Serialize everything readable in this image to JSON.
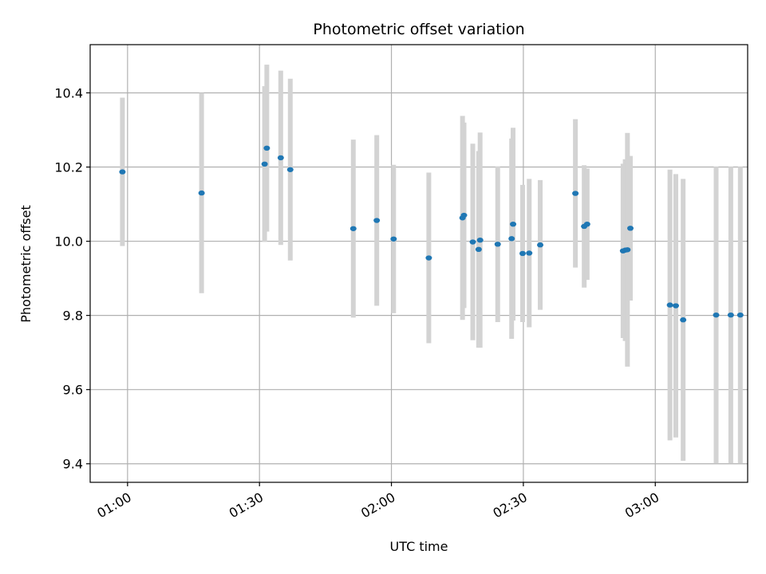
{
  "chart_data": {
    "type": "scatter",
    "title": "Photometric offset variation",
    "xlabel": "UTC time",
    "ylabel": "Photometric offset",
    "x_axis": "time",
    "xlim": [
      "00:51:30",
      "03:21:00"
    ],
    "ylim": [
      9.35,
      10.53
    ],
    "x_ticks": [
      "01:00",
      "01:30",
      "02:00",
      "02:30",
      "03:00"
    ],
    "y_ticks": [
      9.4,
      9.6,
      9.8,
      10.0,
      10.2,
      10.4
    ],
    "y_tick_labels": [
      "9.4",
      "9.6",
      "9.8",
      "10.0",
      "10.2",
      "10.4"
    ],
    "grid": true,
    "colors": {
      "point": "#1f77b4",
      "errorbar": "#d3d3d3",
      "grid": "#b0b0b0"
    },
    "points": [
      {
        "t": "00:58:50",
        "y": 10.187,
        "err": 0.2
      },
      {
        "t": "01:16:50",
        "y": 10.13,
        "err": 0.27
      },
      {
        "t": "01:31:10",
        "y": 10.208,
        "err": 0.21
      },
      {
        "t": "01:31:40",
        "y": 10.251,
        "err": 0.225
      },
      {
        "t": "01:34:50",
        "y": 10.225,
        "err": 0.235
      },
      {
        "t": "01:37:00",
        "y": 10.193,
        "err": 0.245
      },
      {
        "t": "01:51:20",
        "y": 10.034,
        "err": 0.24
      },
      {
        "t": "01:56:40",
        "y": 10.056,
        "err": 0.23
      },
      {
        "t": "02:00:30",
        "y": 10.006,
        "err": 0.2
      },
      {
        "t": "02:08:30",
        "y": 9.955,
        "err": 0.23
      },
      {
        "t": "02:16:10",
        "y": 10.063,
        "err": 0.275
      },
      {
        "t": "02:16:30",
        "y": 10.07,
        "err": 0.25
      },
      {
        "t": "02:18:30",
        "y": 9.998,
        "err": 0.265
      },
      {
        "t": "02:19:50",
        "y": 9.978,
        "err": 0.265
      },
      {
        "t": "02:20:10",
        "y": 10.003,
        "err": 0.29
      },
      {
        "t": "02:24:10",
        "y": 9.992,
        "err": 0.21
      },
      {
        "t": "02:27:20",
        "y": 10.007,
        "err": 0.27
      },
      {
        "t": "02:27:40",
        "y": 10.046,
        "err": 0.26
      },
      {
        "t": "02:29:50",
        "y": 9.967,
        "err": 0.185
      },
      {
        "t": "02:31:20",
        "y": 9.968,
        "err": 0.2
      },
      {
        "t": "02:33:50",
        "y": 9.99,
        "err": 0.175
      },
      {
        "t": "02:41:50",
        "y": 10.129,
        "err": 0.2
      },
      {
        "t": "02:43:50",
        "y": 10.04,
        "err": 0.165
      },
      {
        "t": "02:44:30",
        "y": 10.046,
        "err": 0.15
      },
      {
        "t": "02:52:40",
        "y": 9.974,
        "err": 0.235
      },
      {
        "t": "02:53:10",
        "y": 9.976,
        "err": 0.245
      },
      {
        "t": "02:53:40",
        "y": 9.977,
        "err": 0.315
      },
      {
        "t": "02:54:20",
        "y": 10.035,
        "err": 0.195
      },
      {
        "t": "03:03:20",
        "y": 9.828,
        "err": 0.365
      },
      {
        "t": "03:04:40",
        "y": 9.826,
        "err": 0.355
      },
      {
        "t": "03:06:20",
        "y": 9.788,
        "err": 0.38
      },
      {
        "t": "03:13:50",
        "y": 9.801,
        "err": 0.4
      },
      {
        "t": "03:17:10",
        "y": 9.801,
        "err": 0.4
      },
      {
        "t": "03:19:20",
        "y": 9.801,
        "err": 0.4
      }
    ]
  }
}
